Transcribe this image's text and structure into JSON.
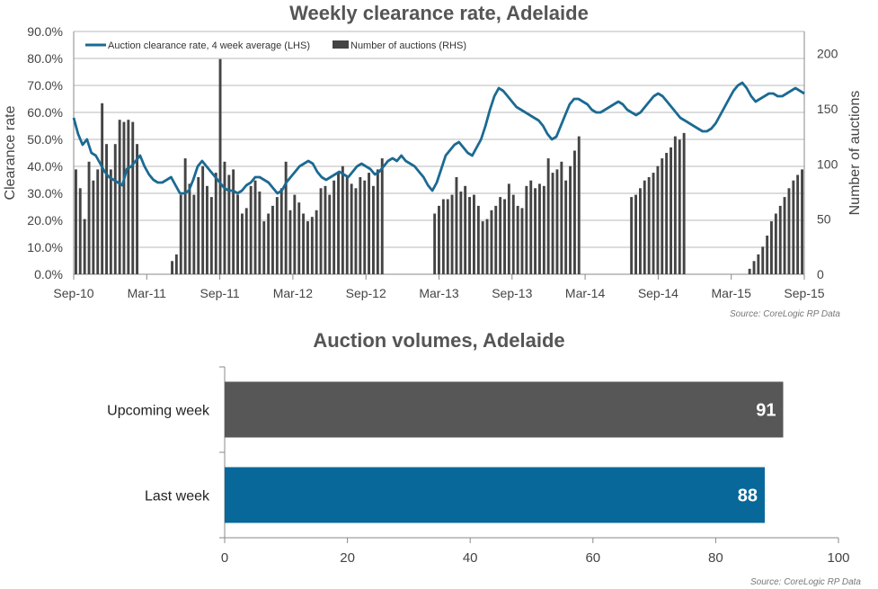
{
  "chart_data": [
    {
      "type": "line",
      "title": "Weekly clearance rate, Adelaide",
      "ylabel": "Clearance rate",
      "y2label": "Number of auctions",
      "ylim": [
        0,
        90
      ],
      "y2lim": [
        0,
        220
      ],
      "yticks": [
        "0.0%",
        "10.0%",
        "20.0%",
        "30.0%",
        "40.0%",
        "50.0%",
        "60.0%",
        "70.0%",
        "80.0%",
        "90.0%"
      ],
      "y2ticks": [
        "0",
        "50",
        "100",
        "150",
        "200"
      ],
      "xticks": [
        "Sep-10",
        "Mar-11",
        "Sep-11",
        "Mar-12",
        "Sep-12",
        "Mar-13",
        "Sep-13",
        "Mar-14",
        "Sep-14",
        "Mar-15",
        "Sep-15"
      ],
      "legend": [
        "Auction clearance rate, 4 week average (LHS)",
        "Number of auctions (RHS)"
      ],
      "legend_position": "top-left",
      "source": "Source: CoreLogic  RP Data",
      "colors": {
        "line": "#1b6a92",
        "bars": "#444444"
      },
      "series": [
        {
          "name": "Auction clearance rate, 4 week average (LHS)",
          "values": [
            58,
            52,
            48,
            50,
            45,
            44,
            41,
            38,
            36,
            35,
            34,
            33,
            39,
            40,
            42,
            44,
            40,
            37,
            35,
            34,
            34,
            35,
            36,
            33,
            30,
            30,
            31,
            35,
            40,
            42,
            40,
            38,
            36,
            34,
            32,
            31,
            31,
            30,
            31,
            33,
            34,
            36,
            36,
            35,
            34,
            32,
            30,
            31,
            34,
            36,
            38,
            40,
            41,
            42,
            41,
            38,
            36,
            35,
            36,
            37,
            38,
            37,
            36,
            38,
            40,
            41,
            40,
            39,
            37,
            38,
            40,
            42,
            43,
            42,
            44,
            42,
            41,
            40,
            38,
            36,
            33,
            31,
            34,
            39,
            44,
            46,
            48,
            49,
            47,
            45,
            44,
            47,
            50,
            55,
            61,
            66,
            69,
            68,
            66,
            64,
            62,
            61,
            60,
            59,
            58,
            57,
            55,
            52,
            50,
            51,
            55,
            59,
            63,
            65,
            65,
            64,
            63,
            61,
            60,
            60,
            61,
            62,
            63,
            64,
            63,
            61,
            60,
            59,
            60,
            62,
            64,
            66,
            67,
            66,
            64,
            62,
            60,
            58,
            57,
            56,
            55,
            54,
            53,
            53,
            54,
            56,
            59,
            62,
            65,
            68,
            70,
            71,
            69,
            66,
            64,
            65,
            66,
            67,
            67,
            66,
            66,
            67,
            68,
            69,
            68,
            67
          ]
        },
        {
          "name": "Number of auctions (RHS)",
          "values": [
            95,
            78,
            50,
            102,
            85,
            95,
            155,
            118,
            95,
            118,
            140,
            138,
            140,
            138,
            118,
            0,
            0,
            0,
            0,
            0,
            0,
            0,
            12,
            18,
            72,
            105,
            82,
            72,
            88,
            98,
            80,
            70,
            92,
            195,
            102,
            90,
            95,
            72,
            55,
            60,
            80,
            85,
            75,
            48,
            55,
            62,
            70,
            78,
            102,
            58,
            72,
            65,
            55,
            48,
            52,
            58,
            78,
            80,
            72,
            85,
            92,
            98,
            88,
            82,
            78,
            88,
            85,
            92,
            80,
            95,
            105,
            0,
            0,
            0,
            0,
            0,
            0,
            0,
            0,
            0,
            0,
            0,
            55,
            62,
            68,
            68,
            72,
            88,
            75,
            80,
            70,
            72,
            62,
            48,
            50,
            58,
            62,
            70,
            68,
            82,
            72,
            62,
            60,
            80,
            85,
            78,
            82,
            80,
            105,
            92,
            95,
            102,
            85,
            98,
            112,
            125,
            0,
            0,
            0,
            0,
            0,
            0,
            0,
            0,
            0,
            0,
            0,
            70,
            72,
            78,
            85,
            88,
            92,
            98,
            105,
            110,
            115,
            125,
            122,
            128,
            0,
            0,
            0,
            0,
            0,
            0,
            0,
            0,
            0,
            0,
            0,
            0,
            0,
            0,
            5,
            12,
            18,
            25,
            35,
            48,
            55,
            62,
            70,
            78,
            85,
            90,
            95
          ]
        }
      ]
    },
    {
      "type": "bar",
      "title": "Auction volumes, Adelaide",
      "orientation": "horizontal",
      "categories": [
        "Upcoming week",
        "Last week"
      ],
      "values": [
        91,
        88
      ],
      "xlim": [
        0,
        100
      ],
      "xticks": [
        "0",
        "20",
        "40",
        "60",
        "80",
        "100"
      ],
      "source": "Source: CoreLogic  RP Data",
      "colors": [
        "#575757",
        "#08689a"
      ]
    }
  ]
}
